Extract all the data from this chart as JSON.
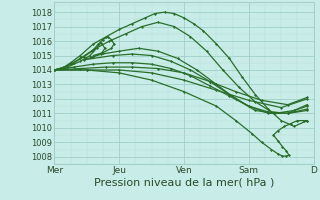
{
  "bg_color": "#c8ede8",
  "grid_color_major": "#a0cfc8",
  "grid_color_minor": "#b8ddd8",
  "line_color": "#2a6e2a",
  "xlim": [
    0,
    4.0
  ],
  "ylim": [
    1007.5,
    1018.7
  ],
  "yticks": [
    1008,
    1009,
    1010,
    1011,
    1012,
    1013,
    1014,
    1015,
    1016,
    1017,
    1018
  ],
  "xtick_positions": [
    0,
    1,
    2,
    3,
    4
  ],
  "xtick_labels": [
    "Mer",
    "Jeu",
    "Ven",
    "Sam",
    "D"
  ],
  "xlabel": "Pression niveau de la mer( hPa )",
  "xlabel_fontsize": 8,
  "ytick_fontsize": 6,
  "xtick_fontsize": 6.5,
  "lines": [
    {
      "x": [
        0.0,
        0.08,
        0.15,
        0.25,
        0.4,
        0.6,
        0.8,
        1.0,
        1.2,
        1.4,
        1.55,
        1.7,
        1.85,
        2.0,
        2.15,
        2.3,
        2.5,
        2.7,
        2.9,
        3.1,
        3.3,
        3.5,
        3.7,
        3.9
      ],
      "y": [
        1014.0,
        1014.1,
        1014.2,
        1014.5,
        1015.0,
        1015.8,
        1016.3,
        1016.8,
        1017.2,
        1017.6,
        1017.9,
        1018.0,
        1017.9,
        1017.6,
        1017.2,
        1016.7,
        1015.8,
        1014.8,
        1013.5,
        1012.3,
        1011.3,
        1010.5,
        1010.1,
        1010.5
      ],
      "lw": 0.9
    },
    {
      "x": [
        0.0,
        0.1,
        0.25,
        0.4,
        0.6,
        0.85,
        1.1,
        1.35,
        1.6,
        1.85,
        2.1,
        2.35,
        2.6,
        2.85,
        3.1,
        3.35,
        3.6,
        3.9
      ],
      "y": [
        1014.0,
        1014.1,
        1014.4,
        1014.8,
        1015.4,
        1016.0,
        1016.5,
        1017.0,
        1017.3,
        1017.0,
        1016.3,
        1015.3,
        1014.0,
        1012.8,
        1011.8,
        1011.1,
        1011.0,
        1011.2
      ],
      "lw": 0.9
    },
    {
      "x": [
        0.0,
        0.15,
        0.3,
        0.45,
        0.58,
        0.68,
        0.75,
        0.82,
        0.88,
        0.92,
        0.88,
        0.75,
        0.6,
        1.0,
        1.3,
        1.6,
        1.9,
        2.2,
        2.5,
        2.8,
        3.1,
        3.4,
        3.7,
        3.9
      ],
      "y": [
        1014.0,
        1014.2,
        1014.5,
        1014.9,
        1015.3,
        1015.8,
        1016.1,
        1016.3,
        1016.1,
        1015.8,
        1015.5,
        1015.2,
        1015.0,
        1015.3,
        1015.5,
        1015.3,
        1014.8,
        1014.0,
        1013.0,
        1012.0,
        1011.2,
        1011.0,
        1011.2,
        1011.5
      ],
      "lw": 0.9
    },
    {
      "x": [
        0.0,
        0.2,
        0.4,
        0.55,
        0.65,
        0.72,
        0.78,
        0.72,
        0.6,
        0.45,
        0.9,
        1.2,
        1.5,
        1.8,
        2.1,
        2.4,
        2.7,
        3.0,
        3.3,
        3.6,
        3.9
      ],
      "y": [
        1014.0,
        1014.2,
        1014.6,
        1015.0,
        1015.5,
        1015.9,
        1015.5,
        1015.1,
        1014.9,
        1014.7,
        1015.0,
        1015.1,
        1015.0,
        1014.6,
        1014.0,
        1013.2,
        1012.3,
        1011.5,
        1011.1,
        1011.0,
        1011.3
      ],
      "lw": 0.9
    },
    {
      "x": [
        0.0,
        0.3,
        0.6,
        0.9,
        1.2,
        1.5,
        1.8,
        2.1,
        2.4,
        2.7,
        3.0,
        3.3,
        3.6,
        3.9
      ],
      "y": [
        1014.0,
        1014.2,
        1014.4,
        1014.5,
        1014.5,
        1014.4,
        1014.1,
        1013.6,
        1012.9,
        1012.2,
        1011.5,
        1011.0,
        1011.0,
        1011.6
      ],
      "lw": 0.9
    },
    {
      "x": [
        0.0,
        0.4,
        0.8,
        1.2,
        1.6,
        2.0,
        2.4,
        2.8,
        3.2,
        3.6,
        3.9
      ],
      "y": [
        1014.0,
        1014.1,
        1014.2,
        1014.2,
        1014.1,
        1013.8,
        1013.2,
        1012.5,
        1011.9,
        1011.6,
        1012.1
      ],
      "lw": 0.9
    },
    {
      "x": [
        0.0,
        0.5,
        1.0,
        1.5,
        2.0,
        2.5,
        3.0,
        3.5,
        3.9
      ],
      "y": [
        1014.0,
        1014.0,
        1014.0,
        1013.8,
        1013.3,
        1012.6,
        1011.9,
        1011.4,
        1012.0
      ],
      "lw": 0.9
    },
    {
      "x": [
        0.0,
        0.5,
        1.0,
        1.5,
        2.0,
        2.5,
        2.8,
        3.05,
        3.2,
        3.35,
        3.45,
        3.52,
        3.58,
        3.62,
        3.58,
        3.52,
        3.45,
        3.38,
        3.45,
        3.55,
        3.65,
        3.75,
        3.85,
        3.9
      ],
      "y": [
        1014.0,
        1014.0,
        1013.8,
        1013.3,
        1012.5,
        1011.5,
        1010.5,
        1009.6,
        1009.0,
        1008.5,
        1008.2,
        1008.05,
        1008.05,
        1008.1,
        1008.4,
        1008.7,
        1009.1,
        1009.5,
        1009.8,
        1010.1,
        1010.3,
        1010.5,
        1010.5,
        1010.5
      ],
      "lw": 0.9
    }
  ]
}
